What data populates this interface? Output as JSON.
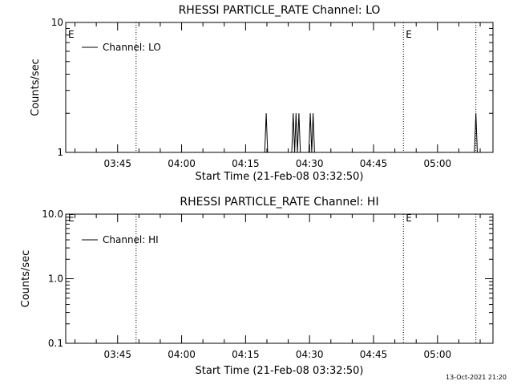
{
  "footer": {
    "timestamp": "13-Oct-2021 21:20"
  },
  "chart_data": [
    {
      "type": "line",
      "title": "RHESSI PARTICLE_RATE Channel: LO",
      "xlabel": "Start Time (21-Feb-08 03:32:50)",
      "ylabel": "Counts/sec",
      "yscale": "log",
      "ylim": [
        1,
        10
      ],
      "ytick_labels": [
        "10",
        "1"
      ],
      "xtick_labels": [
        "03:45",
        "04:00",
        "04:15",
        "04:30",
        "04:45",
        "05:00"
      ],
      "xlim": [
        "03:32:50",
        "05:13:00"
      ],
      "legend": {
        "entries": [
          "Channel: LO"
        ],
        "placement": "top-left"
      },
      "event_markers": [
        "03:49:20",
        "04:52:00",
        "05:09:00"
      ],
      "event_marker_labels": [
        "E",
        "E"
      ],
      "series": [
        {
          "points": [
            [
              "04:19:30",
              1
            ],
            [
              "04:19:50",
              2
            ],
            [
              "04:20:10",
              1
            ],
            [
              "04:25:50",
              1
            ],
            [
              "04:26:10",
              2
            ],
            [
              "04:26:30",
              1
            ],
            [
              "04:26:50",
              2
            ],
            [
              "04:27:10",
              1
            ],
            [
              "04:27:30",
              2
            ],
            [
              "04:27:50",
              1
            ],
            [
              "04:29:50",
              1
            ],
            [
              "04:30:10",
              2
            ],
            [
              "04:30:30",
              1
            ],
            [
              "04:30:50",
              2
            ],
            [
              "04:31:10",
              1
            ],
            [
              "05:08:40",
              1
            ],
            [
              "05:09:00",
              2
            ],
            [
              "05:09:20",
              1
            ]
          ]
        }
      ]
    },
    {
      "type": "line",
      "title": "RHESSI PARTICLE_RATE Channel: HI",
      "xlabel": "Start Time (21-Feb-08 03:32:50)",
      "ylabel": "Counts/sec",
      "yscale": "log",
      "ylim": [
        0.1,
        10
      ],
      "ytick_labels": [
        "10.0",
        "1.0",
        "0.1"
      ],
      "xtick_labels": [
        "03:45",
        "04:00",
        "04:15",
        "04:30",
        "04:45",
        "05:00"
      ],
      "xlim": [
        "03:32:50",
        "05:13:00"
      ],
      "legend": {
        "entries": [
          "Channel: HI"
        ],
        "placement": "top-left"
      },
      "event_markers": [
        "03:49:20",
        "04:52:00",
        "05:09:00"
      ],
      "event_marker_labels": [
        "E",
        "E"
      ],
      "series": [
        {
          "points": []
        }
      ]
    }
  ]
}
